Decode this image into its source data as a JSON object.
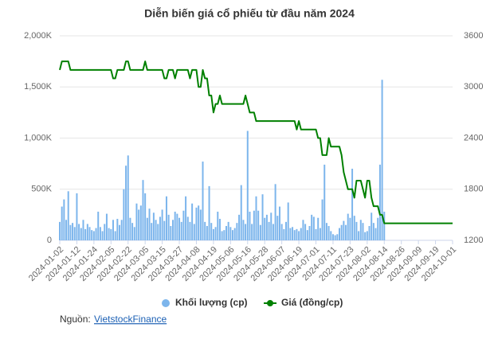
{
  "chart_data": {
    "type": "bar-line",
    "title": "Diễn biến giá cổ phiếu từ đầu năm 2024",
    "categories": [
      "2024-01-02",
      null,
      null,
      null,
      null,
      null,
      null,
      null,
      "2024-01-12",
      null,
      null,
      null,
      null,
      null,
      null,
      null,
      "2024-01-24",
      null,
      null,
      null,
      null,
      null,
      null,
      null,
      "2024-02-05",
      null,
      null,
      null,
      null,
      null,
      null,
      null,
      "2024-02-22",
      null,
      null,
      null,
      null,
      null,
      null,
      null,
      "2024-03-05",
      null,
      null,
      null,
      null,
      null,
      null,
      null,
      "2024-03-15",
      null,
      null,
      null,
      null,
      null,
      null,
      null,
      "2024-03-27",
      null,
      null,
      null,
      null,
      null,
      null,
      null,
      "2024-04-08",
      null,
      null,
      null,
      null,
      null,
      null,
      null,
      "2024-04-19",
      null,
      null,
      null,
      null,
      null,
      null,
      null,
      "2024-05-06",
      null,
      null,
      null,
      null,
      null,
      null,
      null,
      "2024-05-16",
      null,
      null,
      null,
      null,
      null,
      null,
      null,
      "2024-05-28",
      null,
      null,
      null,
      null,
      null,
      null,
      null,
      "2024-06-07",
      null,
      null,
      null,
      null,
      null,
      null,
      null,
      "2024-06-19",
      null,
      null,
      null,
      null,
      null,
      null,
      null,
      "2024-07-01",
      null,
      null,
      null,
      null,
      null,
      null,
      null,
      "2024-07-11",
      null,
      null,
      null,
      null,
      null,
      null,
      null,
      "2024-07-23",
      null,
      null,
      null,
      null,
      null,
      null,
      null,
      "2024-08-02",
      null,
      null,
      null,
      null,
      null,
      null,
      null,
      "2024-08-14",
      null,
      null,
      null,
      null,
      null,
      null,
      null,
      "2024-08-26",
      null,
      null,
      null,
      null,
      null,
      null,
      null,
      "2024-09-09",
      null,
      null,
      null,
      null,
      null,
      null,
      null,
      "2024-09-19",
      null,
      null,
      null,
      null,
      null,
      null,
      null,
      "2024-10-01"
    ],
    "series": [
      {
        "name": "Khối lượng (cp)",
        "color": "#7cb5ec",
        "axis": "y",
        "values": [
          180000,
          330000,
          400000,
          200000,
          480000,
          150000,
          170000,
          130000,
          460000,
          160000,
          120000,
          200000,
          110000,
          160000,
          130000,
          100000,
          90000,
          120000,
          280000,
          130000,
          90000,
          160000,
          260000,
          120000,
          110000,
          200000,
          90000,
          210000,
          150000,
          200000,
          500000,
          730000,
          830000,
          220000,
          170000,
          130000,
          360000,
          300000,
          340000,
          590000,
          460000,
          220000,
          310000,
          170000,
          270000,
          200000,
          160000,
          230000,
          300000,
          190000,
          430000,
          250000,
          140000,
          200000,
          280000,
          260000,
          220000,
          180000,
          290000,
          430000,
          230000,
          180000,
          360000,
          160000,
          320000,
          340000,
          300000,
          770000,
          180000,
          140000,
          530000,
          170000,
          110000,
          130000,
          280000,
          210000,
          90000,
          100000,
          140000,
          180000,
          130000,
          100000,
          120000,
          170000,
          250000,
          540000,
          200000,
          160000,
          1070000,
          280000,
          160000,
          290000,
          430000,
          290000,
          150000,
          450000,
          220000,
          250000,
          180000,
          270000,
          160000,
          550000,
          240000,
          330000,
          160000,
          110000,
          180000,
          370000,
          120000,
          130000,
          100000,
          110000,
          90000,
          120000,
          200000,
          160000,
          100000,
          140000,
          250000,
          230000,
          110000,
          220000,
          120000,
          400000,
          740000,
          170000,
          140000,
          90000,
          60000,
          50000,
          60000,
          120000,
          150000,
          190000,
          150000,
          260000,
          220000,
          700000,
          240000,
          180000,
          90000,
          200000,
          170000,
          80000,
          90000,
          140000,
          270000,
          170000,
          120000,
          220000,
          740000,
          1570000,
          280000,
          null,
          null,
          null,
          null,
          null,
          null,
          null,
          null,
          null,
          null,
          null,
          null,
          null,
          null,
          null,
          null,
          null,
          null,
          null,
          null,
          null,
          null,
          null,
          null,
          null,
          null,
          null,
          null,
          null,
          null,
          null,
          null
        ]
      },
      {
        "name": "Giá (đồng/cp)",
        "color": "#008000",
        "axis": "y2",
        "values": [
          3200,
          3300,
          3300,
          3300,
          3300,
          3200,
          3200,
          3200,
          3200,
          3200,
          3200,
          3200,
          3200,
          3200,
          3200,
          3200,
          3200,
          3200,
          3200,
          3200,
          3200,
          3200,
          3200,
          3200,
          3200,
          3100,
          3100,
          3200,
          3200,
          3200,
          3200,
          3300,
          3300,
          3200,
          3200,
          3200,
          3200,
          3200,
          3200,
          3200,
          3300,
          3200,
          3200,
          3200,
          3200,
          3200,
          3200,
          3200,
          3200,
          3100,
          3100,
          3200,
          3200,
          3200,
          3100,
          3200,
          3200,
          3200,
          3200,
          3200,
          3200,
          3100,
          3200,
          3200,
          3200,
          3000,
          3000,
          3200,
          3100,
          3100,
          2900,
          2900,
          2700,
          2800,
          2800,
          2900,
          2800,
          2800,
          2800,
          2800,
          2800,
          2800,
          2800,
          2800,
          2800,
          2800,
          2800,
          2900,
          2800,
          2700,
          2700,
          2700,
          2600,
          2600,
          2600,
          2600,
          2600,
          2600,
          2600,
          2600,
          2600,
          2600,
          2600,
          2600,
          2600,
          2600,
          2600,
          2600,
          2600,
          2600,
          2600,
          2500,
          2600,
          2500,
          2500,
          2500,
          2500,
          2500,
          2500,
          2500,
          2500,
          2400,
          2400,
          2200,
          2200,
          2200,
          2400,
          2300,
          2300,
          2300,
          2300,
          2300,
          2200,
          2000,
          1900,
          1800,
          1800,
          1800,
          1700,
          1900,
          1900,
          1900,
          1800,
          1700,
          1900,
          1900,
          1700,
          1600,
          1600,
          1600,
          1500,
          1500,
          1400,
          1400,
          1400,
          1400,
          1400,
          1400,
          1400,
          1400,
          1400,
          1400,
          1400,
          1400,
          1400,
          1400,
          1400,
          1400,
          1400,
          1400,
          1400,
          1400,
          1400,
          1400,
          1400,
          1400,
          1400,
          1400,
          1400,
          1400,
          1400,
          1400,
          1400,
          1400,
          1400
        ]
      }
    ],
    "ylim": [
      0,
      2000000
    ],
    "yticks": [
      0,
      {
        "value": 500000,
        "label": "500K"
      },
      {
        "value": 1000000,
        "label": "1,000K"
      },
      {
        "value": 1500000,
        "label": "1,500K"
      },
      {
        "value": 2000000,
        "label": "2,000K"
      }
    ],
    "y2lim": [
      1200,
      3600
    ],
    "y2ticks": [
      1200,
      1800,
      2400,
      3000,
      3600
    ],
    "grid": true,
    "legend": "bottom",
    "source_label": "Nguồn:",
    "source_link": "VietstockFinance"
  }
}
